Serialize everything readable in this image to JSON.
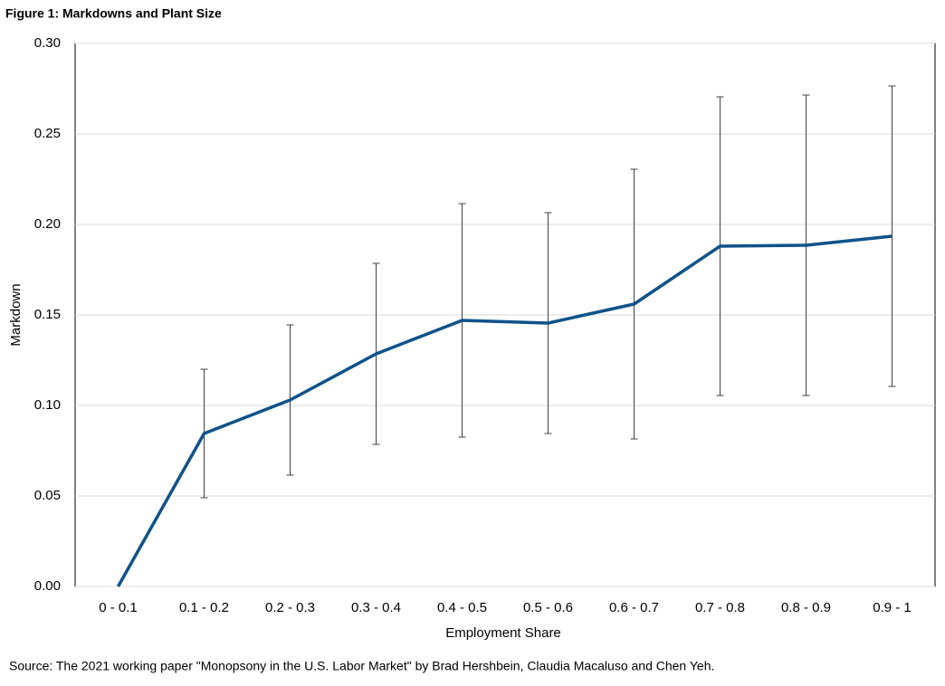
{
  "chart_data": {
    "type": "line",
    "title": "Figure 1: Markdowns and Plant Size",
    "x_label": "Employment Share",
    "y_label": "Markdown",
    "source": "Source: The 2021  working paper \"Monopsony in the U.S. Labor Market\" by Brad Hershbein, Claudia Macaluso and Chen Yeh.",
    "categories": [
      "0 - 0.1",
      "0.1 - 0.2",
      "0.2 - 0.3",
      "0.3 - 0.4",
      "0.4 - 0.5",
      "0.5 - 0.6",
      "0.6 - 0.7",
      "0.7 - 0.8",
      "0.8 - 0.9",
      "0.9 - 1"
    ],
    "series": [
      {
        "name": "Markdown",
        "color": "#0e5289",
        "values": [
          0.0,
          0.0845,
          0.103,
          0.1285,
          0.147,
          0.1455,
          0.156,
          0.188,
          0.1885,
          0.1935
        ],
        "errors": [
          null,
          0.0355,
          0.0415,
          0.05,
          0.0645,
          0.061,
          0.0745,
          0.0825,
          0.083,
          0.083
        ]
      }
    ],
    "ylim": [
      0,
      0.3
    ],
    "yticks": [
      {
        "value": 0,
        "label": "0.00"
      },
      {
        "value": 0.05,
        "label": "0.05"
      },
      {
        "value": 0.1,
        "label": "0.10"
      },
      {
        "value": 0.15,
        "label": "0.15"
      },
      {
        "value": 0.2,
        "label": "0.20"
      },
      {
        "value": 0.25,
        "label": "0.25"
      },
      {
        "value": 0.3,
        "label": "0.30"
      }
    ],
    "grid": true
  }
}
